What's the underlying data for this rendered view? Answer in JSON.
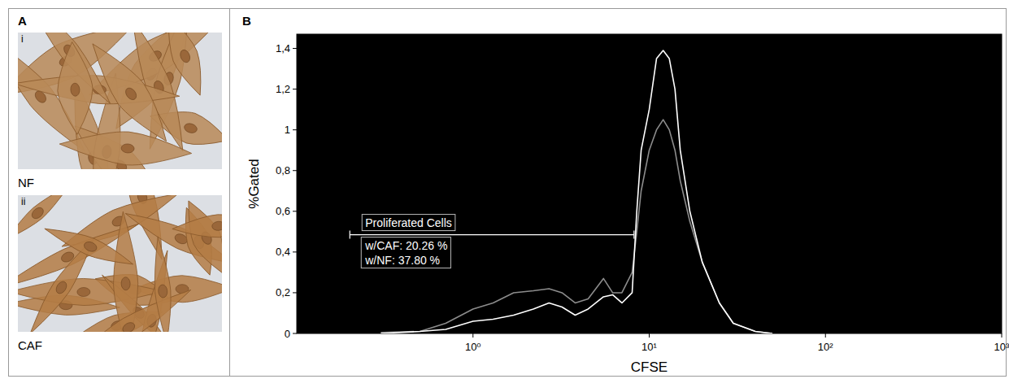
{
  "figure": {
    "panel_a": {
      "letter": "A",
      "images": [
        {
          "label": "i",
          "caption": "NF"
        },
        {
          "label": "ii",
          "caption": "CAF"
        }
      ]
    },
    "panel_b_letter": "B"
  },
  "chart_data": {
    "type": "line",
    "log": "x",
    "x_label": "CFSE",
    "y_label": "%Gated",
    "xlim": [
      0.1,
      1000
    ],
    "xticks": [
      {
        "value": 1,
        "label": "10⁰"
      },
      {
        "value": 10,
        "label": "10¹"
      },
      {
        "value": 100,
        "label": "10²"
      },
      {
        "value": 1000,
        "label": "10³"
      }
    ],
    "ylim": [
      0,
      1.47
    ],
    "yticks": [
      0,
      {
        "value": 0.2,
        "label": "0,2"
      },
      {
        "value": 0.4,
        "label": "0,4"
      },
      {
        "value": 0.6,
        "label": "0,6"
      },
      {
        "value": 0.8,
        "label": "0,8"
      },
      {
        "value": 1,
        "label": "1"
      },
      {
        "value": 1.2,
        "label": "1,2"
      },
      {
        "value": 1.4,
        "label": "1,4"
      }
    ],
    "grid": false,
    "x": [
      0.3,
      0.5,
      0.7,
      1,
      1.3,
      1.7,
      2.2,
      2.7,
      3.2,
      3.8,
      4.5,
      5.5,
      6.2,
      7,
      8,
      8.5,
      9,
      10,
      11,
      12,
      13,
      14,
      15,
      17,
      20,
      25,
      30,
      40,
      50
    ],
    "series": [
      {
        "color": "#8c8c8c",
        "values": [
          0.005,
          0.01,
          0.05,
          0.12,
          0.15,
          0.2,
          0.21,
          0.22,
          0.2,
          0.15,
          0.17,
          0.27,
          0.2,
          0.2,
          0.3,
          0.5,
          0.7,
          0.9,
          1.0,
          1.05,
          1.0,
          0.9,
          0.75,
          0.55,
          0.35,
          0.15,
          0.05,
          0.01,
          0
        ]
      },
      {
        "color": "#ffffff",
        "values": [
          0,
          0.01,
          0.02,
          0.06,
          0.07,
          0.09,
          0.12,
          0.15,
          0.13,
          0.09,
          0.12,
          0.18,
          0.19,
          0.15,
          0.2,
          0.6,
          0.9,
          1.1,
          1.35,
          1.39,
          1.35,
          1.2,
          0.9,
          0.6,
          0.35,
          0.15,
          0.05,
          0.01,
          0
        ]
      }
    ],
    "annotations": [
      {
        "label": "Proliferated Cells",
        "xmin": 0.2,
        "xmax": 8.2,
        "y": 0.485,
        "stats": [
          "w/CAF: 20.26 %",
          "w/NF: 37.80 %"
        ]
      }
    ]
  }
}
